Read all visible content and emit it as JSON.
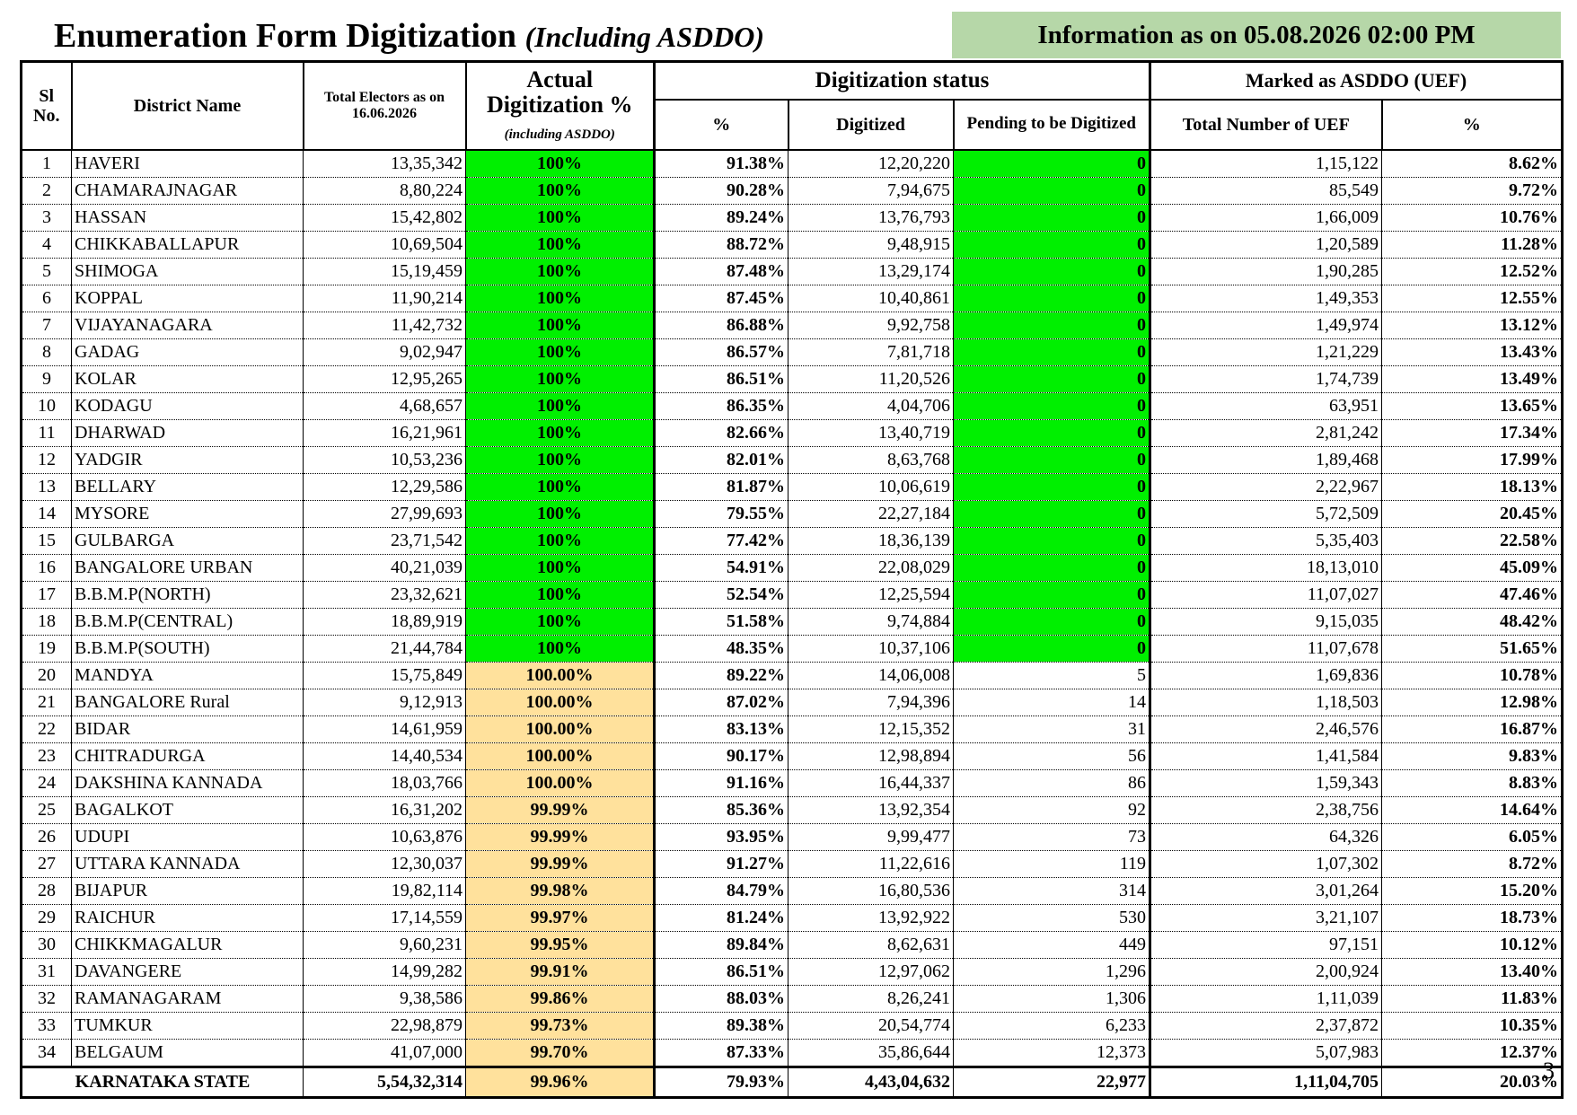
{
  "header": {
    "title": "Enumeration Form Digitization",
    "subtitle": "(Including ASDDO)",
    "info": "Information as on 05.08.2026 02:00 PM"
  },
  "table": {
    "columns": {
      "sl": "Sl No.",
      "district": "District Name",
      "electors": "Total Electors as on 16.06.2026",
      "actual": "Actual Digitization %",
      "actual_note": "(including ASDDO)",
      "status": "Digitization status",
      "status_pct": "%",
      "digitized": "Digitized",
      "pending": "Pending to be Digitized",
      "asddo": "Marked as ASDDO (UEF)",
      "uef_total": "Total Number of UEF",
      "uef_pct": "%"
    },
    "rows": [
      [
        "1",
        "HAVERI",
        "13,35,342",
        "100%",
        "91.38%",
        "12,20,220",
        "0",
        "1,15,122",
        "8.62%"
      ],
      [
        "2",
        "CHAMARAJNAGAR",
        "8,80,224",
        "100%",
        "90.28%",
        "7,94,675",
        "0",
        "85,549",
        "9.72%"
      ],
      [
        "3",
        "HASSAN",
        "15,42,802",
        "100%",
        "89.24%",
        "13,76,793",
        "0",
        "1,66,009",
        "10.76%"
      ],
      [
        "4",
        "CHIKKABALLAPUR",
        "10,69,504",
        "100%",
        "88.72%",
        "9,48,915",
        "0",
        "1,20,589",
        "11.28%"
      ],
      [
        "5",
        "SHIMOGA",
        "15,19,459",
        "100%",
        "87.48%",
        "13,29,174",
        "0",
        "1,90,285",
        "12.52%"
      ],
      [
        "6",
        "KOPPAL",
        "11,90,214",
        "100%",
        "87.45%",
        "10,40,861",
        "0",
        "1,49,353",
        "12.55%"
      ],
      [
        "7",
        "VIJAYANAGARA",
        "11,42,732",
        "100%",
        "86.88%",
        "9,92,758",
        "0",
        "1,49,974",
        "13.12%"
      ],
      [
        "8",
        "GADAG",
        "9,02,947",
        "100%",
        "86.57%",
        "7,81,718",
        "0",
        "1,21,229",
        "13.43%"
      ],
      [
        "9",
        "KOLAR",
        "12,95,265",
        "100%",
        "86.51%",
        "11,20,526",
        "0",
        "1,74,739",
        "13.49%"
      ],
      [
        "10",
        "KODAGU",
        "4,68,657",
        "100%",
        "86.35%",
        "4,04,706",
        "0",
        "63,951",
        "13.65%"
      ],
      [
        "11",
        "DHARWAD",
        "16,21,961",
        "100%",
        "82.66%",
        "13,40,719",
        "0",
        "2,81,242",
        "17.34%"
      ],
      [
        "12",
        "YADGIR",
        "10,53,236",
        "100%",
        "82.01%",
        "8,63,768",
        "0",
        "1,89,468",
        "17.99%"
      ],
      [
        "13",
        "BELLARY",
        "12,29,586",
        "100%",
        "81.87%",
        "10,06,619",
        "0",
        "2,22,967",
        "18.13%"
      ],
      [
        "14",
        "MYSORE",
        "27,99,693",
        "100%",
        "79.55%",
        "22,27,184",
        "0",
        "5,72,509",
        "20.45%"
      ],
      [
        "15",
        "GULBARGA",
        "23,71,542",
        "100%",
        "77.42%",
        "18,36,139",
        "0",
        "5,35,403",
        "22.58%"
      ],
      [
        "16",
        "BANGALORE URBAN",
        "40,21,039",
        "100%",
        "54.91%",
        "22,08,029",
        "0",
        "18,13,010",
        "45.09%"
      ],
      [
        "17",
        "B.B.M.P(NORTH)",
        "23,32,621",
        "100%",
        "52.54%",
        "12,25,594",
        "0",
        "11,07,027",
        "47.46%"
      ],
      [
        "18",
        "B.B.M.P(CENTRAL)",
        "18,89,919",
        "100%",
        "51.58%",
        "9,74,884",
        "0",
        "9,15,035",
        "48.42%"
      ],
      [
        "19",
        "B.B.M.P(SOUTH)",
        "21,44,784",
        "100%",
        "48.35%",
        "10,37,106",
        "0",
        "11,07,678",
        "51.65%"
      ],
      [
        "20",
        "MANDYA",
        "15,75,849",
        "100.00%",
        "89.22%",
        "14,06,008",
        "5",
        "1,69,836",
        "10.78%"
      ],
      [
        "21",
        "BANGALORE Rural",
        "9,12,913",
        "100.00%",
        "87.02%",
        "7,94,396",
        "14",
        "1,18,503",
        "12.98%"
      ],
      [
        "22",
        "BIDAR",
        "14,61,959",
        "100.00%",
        "83.13%",
        "12,15,352",
        "31",
        "2,46,576",
        "16.87%"
      ],
      [
        "23",
        "CHITRADURGA",
        "14,40,534",
        "100.00%",
        "90.17%",
        "12,98,894",
        "56",
        "1,41,584",
        "9.83%"
      ],
      [
        "24",
        "DAKSHINA KANNADA",
        "18,03,766",
        "100.00%",
        "91.16%",
        "16,44,337",
        "86",
        "1,59,343",
        "8.83%"
      ],
      [
        "25",
        "BAGALKOT",
        "16,31,202",
        "99.99%",
        "85.36%",
        "13,92,354",
        "92",
        "2,38,756",
        "14.64%"
      ],
      [
        "26",
        "UDUPI",
        "10,63,876",
        "99.99%",
        "93.95%",
        "9,99,477",
        "73",
        "64,326",
        "6.05%"
      ],
      [
        "27",
        "UTTARA KANNADA",
        "12,30,037",
        "99.99%",
        "91.27%",
        "11,22,616",
        "119",
        "1,07,302",
        "8.72%"
      ],
      [
        "28",
        "BIJAPUR",
        "19,82,114",
        "99.98%",
        "84.79%",
        "16,80,536",
        "314",
        "3,01,264",
        "15.20%"
      ],
      [
        "29",
        "RAICHUR",
        "17,14,559",
        "99.97%",
        "81.24%",
        "13,92,922",
        "530",
        "3,21,107",
        "18.73%"
      ],
      [
        "30",
        "CHIKKMAGALUR",
        "9,60,231",
        "99.95%",
        "89.84%",
        "8,62,631",
        "449",
        "97,151",
        "10.12%"
      ],
      [
        "31",
        "DAVANGERE",
        "14,99,282",
        "99.91%",
        "86.51%",
        "12,97,062",
        "1,296",
        "2,00,924",
        "13.40%"
      ],
      [
        "32",
        "RAMANAGARAM",
        "9,38,586",
        "99.86%",
        "88.03%",
        "8,26,241",
        "1,306",
        "1,11,039",
        "11.83%"
      ],
      [
        "33",
        "TUMKUR",
        "22,98,879",
        "99.73%",
        "89.38%",
        "20,54,774",
        "6,233",
        "2,37,872",
        "10.35%"
      ],
      [
        "34",
        "BELGAUM",
        "41,07,000",
        "99.70%",
        "87.33%",
        "35,86,644",
        "12,373",
        "5,07,983",
        "12.37%"
      ]
    ],
    "total": {
      "label": "KARNATAKA STATE",
      "values": [
        "5,54,32,314",
        "99.96%",
        "79.93%",
        "4,43,04,632",
        "22,977",
        "1,11,04,705",
        "20.03%"
      ]
    }
  },
  "page_number": "3"
}
